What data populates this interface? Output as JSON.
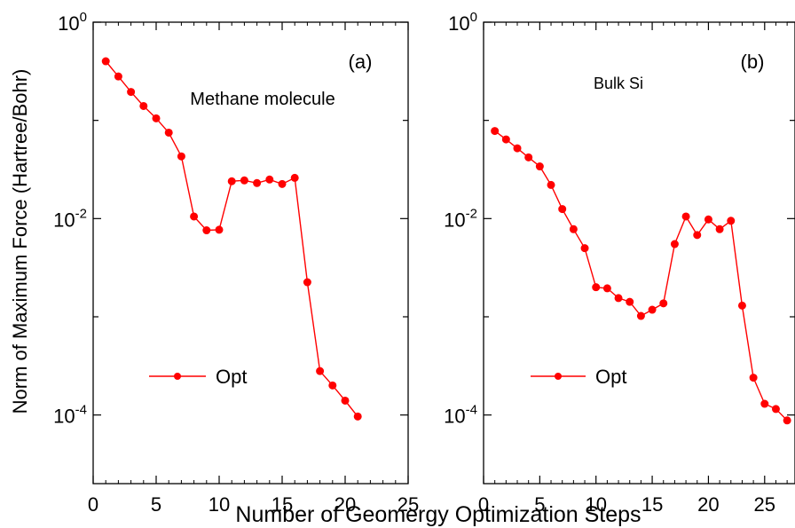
{
  "figure": {
    "ylabel": "Norm of Maximum Force (Hartree/Bohr)",
    "xlabel": "Number of Geomergy Optimization Steps"
  },
  "chart_data": [
    {
      "type": "line",
      "panel_label": "(a)",
      "annotation": "Methane molecule",
      "xlabel": "Number of Geomergy Optimization Steps",
      "ylabel": "Norm of Maximum Force (Hartree/Bohr)",
      "xlim": [
        0,
        25
      ],
      "ylim": [
        2e-05,
        1
      ],
      "yscale": "log",
      "xticks": [
        "0",
        "5",
        "10",
        "15",
        "20",
        "25"
      ],
      "yticks": [
        {
          "base": "10",
          "exp": "0",
          "value": 1
        },
        {
          "base": "10",
          "exp": "-2",
          "value": 0.01
        },
        {
          "base": "10",
          "exp": "-4",
          "value": 0.0001
        }
      ],
      "legend": {
        "position": "lower-left",
        "entries": [
          "Opt"
        ]
      },
      "grid": false,
      "series": [
        {
          "name": "Opt",
          "color": "#ff0000",
          "marker": "circle",
          "x": [
            1,
            2,
            3,
            4,
            5,
            6,
            7,
            8,
            9,
            10,
            11,
            12,
            13,
            14,
            15,
            16,
            17,
            18,
            19,
            20,
            21
          ],
          "y": [
            0.4,
            0.28,
            0.195,
            0.14,
            0.105,
            0.075,
            0.043,
            0.0105,
            0.0076,
            0.0077,
            0.024,
            0.0245,
            0.023,
            0.025,
            0.0225,
            0.026,
            0.00225,
            0.00028,
            0.0002,
            0.00014,
            9.65e-05
          ]
        }
      ]
    },
    {
      "type": "line",
      "panel_label": "(b)",
      "annotation": "Bulk Si",
      "xlabel": "Number of Geomergy Optimization Steps",
      "ylabel": "Norm of Maximum Force (Hartree/Bohr)",
      "xlim": [
        0,
        27.7
      ],
      "ylim": [
        2e-05,
        1
      ],
      "yscale": "log",
      "xticks": [
        "0",
        "5",
        "10",
        "15",
        "20",
        "25"
      ],
      "yticks": [
        {
          "base": "10",
          "exp": "0",
          "value": 1
        },
        {
          "base": "10",
          "exp": "-2",
          "value": 0.01
        },
        {
          "base": "10",
          "exp": "-4",
          "value": 0.0001
        }
      ],
      "legend": {
        "position": "lower-left",
        "entries": [
          "Opt"
        ]
      },
      "grid": false,
      "series": [
        {
          "name": "Opt",
          "color": "#ff0000",
          "marker": "circle",
          "x": [
            1,
            2,
            3,
            4,
            5,
            6,
            7,
            8,
            9,
            10,
            11,
            12,
            13,
            14,
            15,
            16,
            17,
            18,
            19,
            20,
            21,
            22,
            23,
            24,
            25,
            26,
            27
          ],
          "y": [
            0.078,
            0.064,
            0.052,
            0.042,
            0.034,
            0.022,
            0.0125,
            0.0078,
            0.005,
            0.002,
            0.00195,
            0.00155,
            0.00142,
            0.00102,
            0.00118,
            0.00137,
            0.0055,
            0.0105,
            0.0068,
            0.0098,
            0.0078,
            0.0095,
            0.0013,
            0.00024,
            0.00013,
            0.000115,
            8.8e-05
          ]
        }
      ]
    }
  ]
}
